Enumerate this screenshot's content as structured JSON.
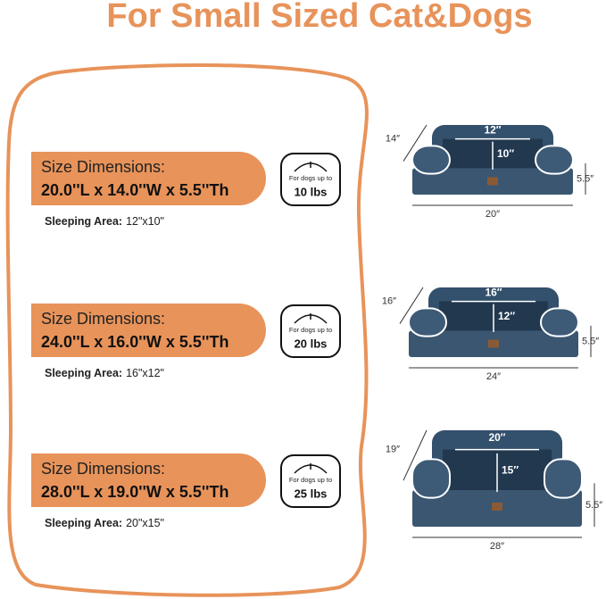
{
  "title": "For Small Sized Cat&Dogs",
  "items": [
    {
      "size_label": "Size Dimensions:",
      "dimensions": "20.0''L x 14.0''W x 5.5''Th",
      "weight_label": "For dogs up to",
      "weight": "10 lbs",
      "sleeping_label": "Sleeping Area:",
      "sleeping_area": "12\"x10\"",
      "diagram": {
        "depth": "14″",
        "inner_width": "12″",
        "inner_depth": "10″",
        "height": "5.5″",
        "width": "20″"
      }
    },
    {
      "size_label": "Size Dimensions:",
      "dimensions": "24.0''L x 16.0''W x 5.5''Th",
      "weight_label": "For dogs up to",
      "weight": "20 lbs",
      "sleeping_label": "Sleeping Area:",
      "sleeping_area": "16\"x12\"",
      "diagram": {
        "depth": "16″",
        "inner_width": "16″",
        "inner_depth": "12″",
        "height": "5.5″",
        "width": "24″"
      }
    },
    {
      "size_label": "Size Dimensions:",
      "dimensions": "28.0''L x 19.0''W x 5.5''Th",
      "weight_label": "For dogs up to",
      "weight": "25 lbs",
      "sleeping_label": "Sleeping Area:",
      "sleeping_area": "20\"x15\"",
      "diagram": {
        "depth": "19″",
        "inner_width": "20″",
        "inner_depth": "15″",
        "height": "5.5″",
        "width": "28″"
      }
    }
  ]
}
